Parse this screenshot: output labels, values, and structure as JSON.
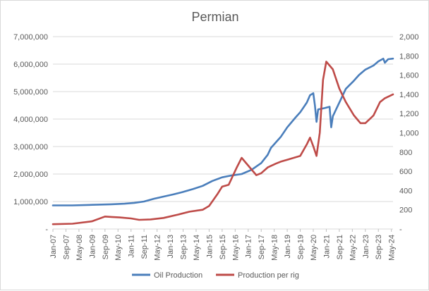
{
  "chart_data": {
    "type": "line",
    "title": "Permian",
    "x_ticks": [
      "Jan-07",
      "Sep-07",
      "May-08",
      "Jan-09",
      "Sep-09",
      "May-10",
      "Jan-11",
      "Sep-11",
      "May-12",
      "Jan-13",
      "Sep-13",
      "May-14",
      "Jan-15",
      "Sep-15",
      "May-16",
      "Jan-17",
      "Sep-17",
      "May-18",
      "Jan-19",
      "Sep-19",
      "May-20",
      "Jan-21",
      "Sep-21",
      "May-22",
      "Jan-23",
      "Sep-23",
      "May-24"
    ],
    "y_left": {
      "min": 0,
      "max": 7000000,
      "step": 1000000,
      "tick_labels": [
        "-",
        "1,000,000",
        "2,000,000",
        "3,000,000",
        "4,000,000",
        "5,000,000",
        "6,000,000",
        "7,000,000"
      ]
    },
    "y_right": {
      "min": 0,
      "max": 2000,
      "step": 200,
      "tick_labels": [
        "-",
        "200",
        "400",
        "600",
        "800",
        "1,000",
        "1,200",
        "1,400",
        "1,600",
        "1,800",
        "2,000"
      ]
    },
    "grid": true,
    "legend_position": "bottom",
    "series": [
      {
        "name": "Oil Production",
        "axis": "left",
        "color": "#4a7ebb",
        "points": [
          [
            "2007-01",
            860000
          ],
          [
            "2008-01",
            860000
          ],
          [
            "2009-01",
            880000
          ],
          [
            "2010-01",
            900000
          ],
          [
            "2010-09",
            920000
          ],
          [
            "2011-03",
            950000
          ],
          [
            "2011-09",
            1000000
          ],
          [
            "2012-03",
            1100000
          ],
          [
            "2012-09",
            1180000
          ],
          [
            "2013-03",
            1260000
          ],
          [
            "2013-09",
            1350000
          ],
          [
            "2014-03",
            1450000
          ],
          [
            "2014-09",
            1570000
          ],
          [
            "2015-03",
            1750000
          ],
          [
            "2015-09",
            1880000
          ],
          [
            "2016-03",
            1950000
          ],
          [
            "2016-09",
            2000000
          ],
          [
            "2017-03",
            2150000
          ],
          [
            "2017-09",
            2400000
          ],
          [
            "2018-01",
            2700000
          ],
          [
            "2018-03",
            2950000
          ],
          [
            "2018-09",
            3350000
          ],
          [
            "2019-01",
            3700000
          ],
          [
            "2019-06",
            4050000
          ],
          [
            "2019-09",
            4250000
          ],
          [
            "2020-01",
            4600000
          ],
          [
            "2020-03",
            4870000
          ],
          [
            "2020-05",
            4940000
          ],
          [
            "2020-06",
            4500000
          ],
          [
            "2020-07",
            3900000
          ],
          [
            "2020-08",
            4350000
          ],
          [
            "2020-12",
            4400000
          ],
          [
            "2021-03",
            4450000
          ],
          [
            "2021-04",
            3700000
          ],
          [
            "2021-05",
            4100000
          ],
          [
            "2021-09",
            4600000
          ],
          [
            "2022-01",
            5100000
          ],
          [
            "2022-06",
            5400000
          ],
          [
            "2022-09",
            5600000
          ],
          [
            "2023-01",
            5800000
          ],
          [
            "2023-06",
            5950000
          ],
          [
            "2023-09",
            6100000
          ],
          [
            "2023-12",
            6200000
          ],
          [
            "2024-01",
            6050000
          ],
          [
            "2024-03",
            6180000
          ],
          [
            "2024-06",
            6200000
          ]
        ]
      },
      {
        "name": "Production per rig",
        "axis": "right",
        "color": "#be4b48",
        "points": [
          [
            "2007-01",
            50
          ],
          [
            "2008-01",
            55
          ],
          [
            "2009-01",
            80
          ],
          [
            "2009-09",
            130
          ],
          [
            "2010-01",
            125
          ],
          [
            "2010-06",
            120
          ],
          [
            "2011-01",
            110
          ],
          [
            "2011-06",
            95
          ],
          [
            "2012-01",
            100
          ],
          [
            "2012-09",
            115
          ],
          [
            "2013-06",
            150
          ],
          [
            "2014-01",
            180
          ],
          [
            "2014-09",
            200
          ],
          [
            "2015-01",
            240
          ],
          [
            "2015-06",
            360
          ],
          [
            "2015-09",
            440
          ],
          [
            "2016-01",
            460
          ],
          [
            "2016-06",
            640
          ],
          [
            "2016-09",
            740
          ],
          [
            "2017-01",
            660
          ],
          [
            "2017-06",
            560
          ],
          [
            "2017-09",
            580
          ],
          [
            "2018-01",
            640
          ],
          [
            "2018-06",
            680
          ],
          [
            "2018-09",
            700
          ],
          [
            "2019-01",
            720
          ],
          [
            "2019-09",
            760
          ],
          [
            "2020-01",
            880
          ],
          [
            "2020-03",
            950
          ],
          [
            "2020-05",
            860
          ],
          [
            "2020-07",
            760
          ],
          [
            "2020-09",
            1000
          ],
          [
            "2020-11",
            1550
          ],
          [
            "2021-01",
            1740
          ],
          [
            "2021-05",
            1660
          ],
          [
            "2021-09",
            1460
          ],
          [
            "2022-01",
            1320
          ],
          [
            "2022-06",
            1180
          ],
          [
            "2022-10",
            1100
          ],
          [
            "2023-01",
            1100
          ],
          [
            "2023-06",
            1180
          ],
          [
            "2023-10",
            1320
          ],
          [
            "2024-01",
            1360
          ],
          [
            "2024-06",
            1400
          ]
        ]
      }
    ]
  }
}
